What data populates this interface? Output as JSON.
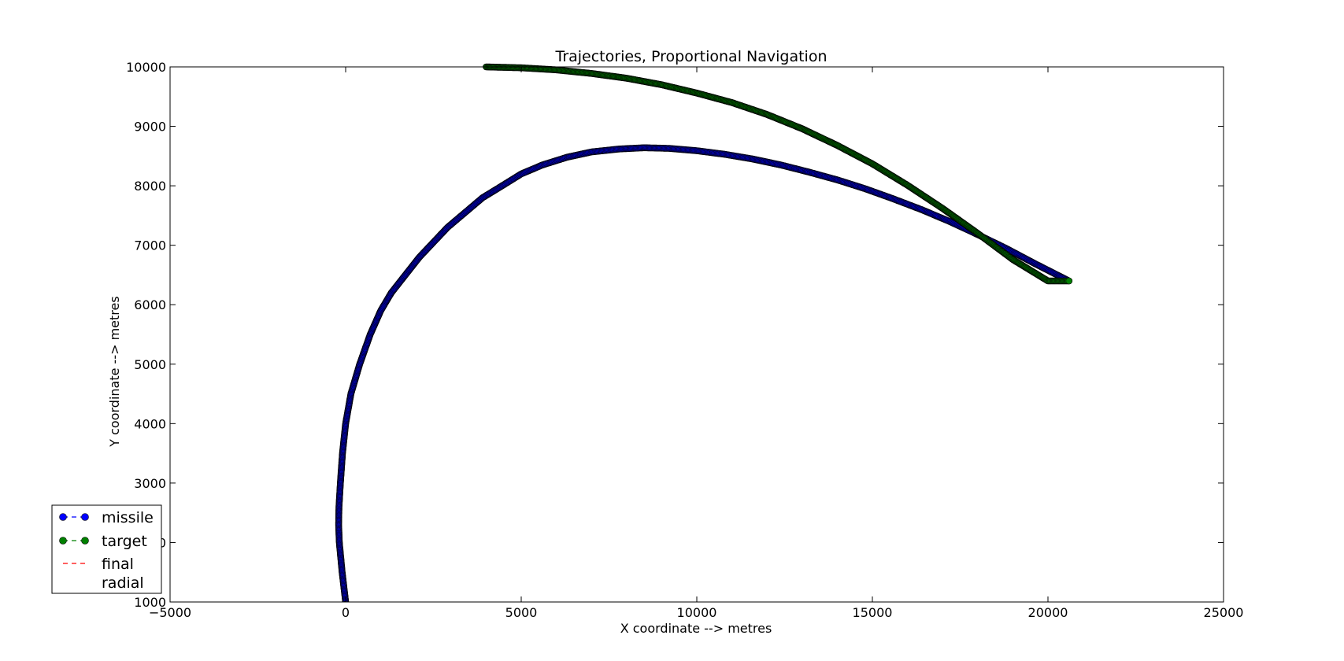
{
  "chart_data": {
    "type": "scatter",
    "title": "Trajectories, Proportional Navigation",
    "xlabel": "X coordinate -->  metres",
    "ylabel": "Y coordinate -->  metres",
    "xlim": [
      -5000,
      25000
    ],
    "ylim": [
      1000,
      10000
    ],
    "xticks": [
      -5000,
      0,
      5000,
      10000,
      15000,
      20000,
      25000
    ],
    "yticks": [
      1000,
      2000,
      3000,
      4000,
      5000,
      6000,
      7000,
      8000,
      9000,
      10000
    ],
    "xtick_labels": [
      "−5000",
      "0",
      "5000",
      "10000",
      "15000",
      "20000",
      "25000"
    ],
    "ytick_labels": [
      "1000",
      "2000",
      "3000",
      "4000",
      "5000",
      "6000",
      "7000",
      "8000",
      "9000",
      "10000"
    ],
    "grid": false,
    "legend_position": "bottom-left",
    "series": [
      {
        "name": "missile",
        "color": "#0000ff",
        "style": "dashed-line-with-circle-markers",
        "x": [
          0,
          -100,
          -180,
          -200,
          -190,
          -150,
          -90,
          0,
          150,
          400,
          700,
          1000,
          1300,
          1700,
          2100,
          2500,
          2900,
          3400,
          3900,
          4400,
          5000,
          5600,
          6300,
          7000,
          7800,
          8500,
          9200,
          10000,
          10800,
          11600,
          12400,
          13200,
          14000,
          14800,
          15600,
          16400,
          17200,
          18000,
          18800,
          19600,
          20200,
          20600
        ],
        "y": [
          1000,
          1500,
          2000,
          2300,
          2600,
          3000,
          3500,
          4000,
          4500,
          5000,
          5500,
          5900,
          6200,
          6500,
          6800,
          7050,
          7300,
          7550,
          7800,
          7980,
          8200,
          8350,
          8480,
          8570,
          8620,
          8640,
          8630,
          8590,
          8530,
          8450,
          8350,
          8230,
          8100,
          7950,
          7780,
          7600,
          7400,
          7180,
          6950,
          6700,
          6520,
          6400
        ]
      },
      {
        "name": "target",
        "color": "#008000",
        "style": "dashed-line-with-circle-markers",
        "x": [
          4000,
          5000,
          6000,
          7000,
          8000,
          9000,
          10000,
          11000,
          12000,
          13000,
          14000,
          15000,
          16000,
          17000,
          18000,
          19000,
          20000,
          20600
        ],
        "y": [
          10000,
          9985,
          9950,
          9890,
          9810,
          9700,
          9560,
          9400,
          9200,
          8960,
          8680,
          8370,
          8010,
          7620,
          7200,
          6760,
          6400,
          6400
        ]
      },
      {
        "name": "final\nradial",
        "color": "#ff0000",
        "style": "dashed-line",
        "x": [],
        "y": []
      }
    ],
    "legend": [
      {
        "label_lines": [
          "missile"
        ],
        "color": "#0000ff",
        "marker": "circle"
      },
      {
        "label_lines": [
          "target"
        ],
        "color": "#008000",
        "marker": "circle"
      },
      {
        "label_lines": [
          "final",
          "radial"
        ],
        "color": "#ff0000",
        "marker": "none"
      }
    ]
  }
}
